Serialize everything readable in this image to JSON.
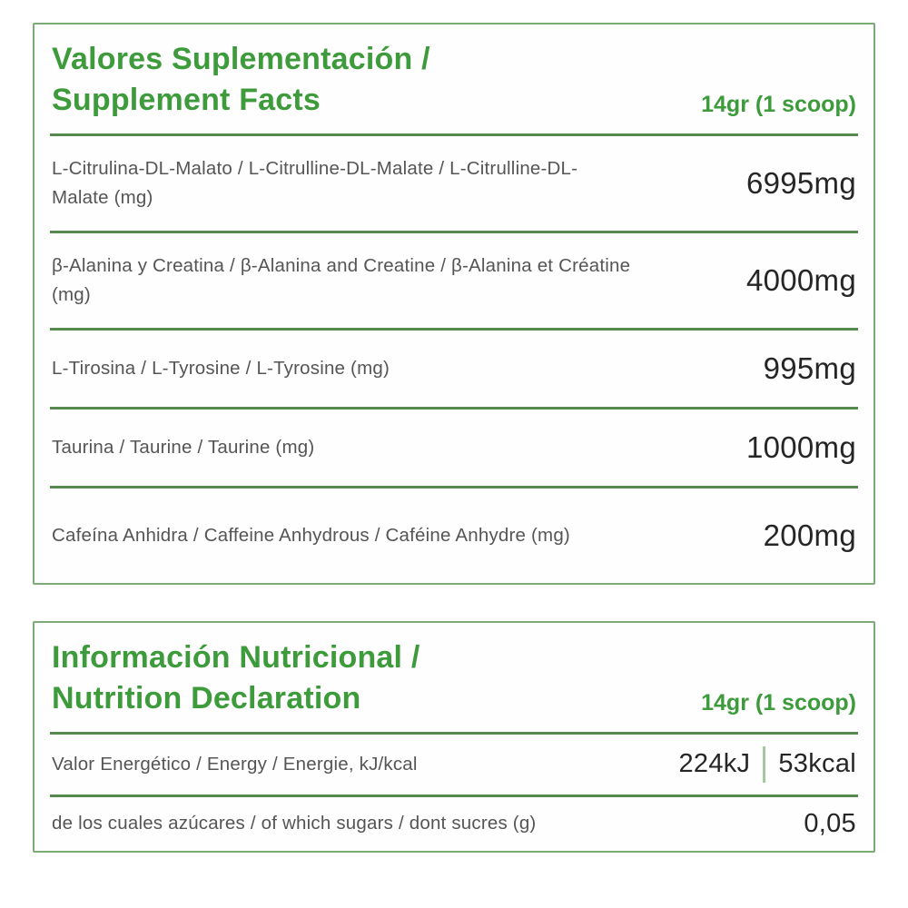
{
  "colors": {
    "accent_green": "#3e9b3c",
    "border_green": "#7dab78",
    "separator_green": "#57884f",
    "label_gray": "#555555",
    "value_black": "#262626"
  },
  "supplement_panel": {
    "title_line1": "Valores Suplementación /",
    "title_line2": "Supplement Facts",
    "serving": "14gr (1 scoop)",
    "rows": [
      {
        "label": "L-Citrulina-DL-Malato / L-Citrulline-DL-Malate / L-Citrulline-DL-Malate (mg)",
        "value": "6995mg"
      },
      {
        "label": "β-Alanina y Creatina / β-Alanina and Creatine / β-Alanina et Créatine (mg)",
        "value": "4000mg"
      },
      {
        "label": "L-Tirosina / L-Tyrosine / L-Tyrosine (mg)",
        "value": "995mg"
      },
      {
        "label": "Taurina / Taurine / Taurine (mg)",
        "value": "1000mg"
      },
      {
        "label": "Cafeína Anhidra / Caffeine Anhydrous / Caféine Anhydre (mg)",
        "value": "200mg"
      }
    ]
  },
  "nutrition_panel": {
    "title_line1": "Información Nutricional /",
    "title_line2": "Nutrition Declaration",
    "serving": "14gr (1 scoop)",
    "energy_row": {
      "label": "Valor Energético / Energy / Energie, kJ/kcal",
      "value_kj": "224kJ",
      "value_kcal": "53kcal"
    },
    "sugars_row": {
      "label": "de los cuales azúcares / of which sugars / dont sucres (g)",
      "value": "0,05"
    }
  }
}
